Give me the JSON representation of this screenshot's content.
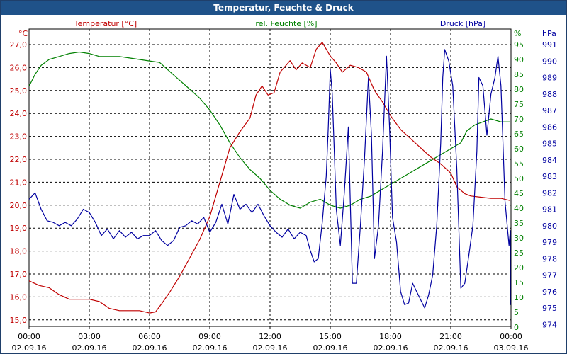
{
  "window": {
    "title": "Temperatur, Feuchte & Druck"
  },
  "chart_data": {
    "type": "line",
    "title": "Temperatur, Feuchte & Druck",
    "x_ticks": [
      {
        "time": "00:00",
        "date": "02.09.16"
      },
      {
        "time": "03:00",
        "date": "02.09.16"
      },
      {
        "time": "06:00",
        "date": "02.09.16"
      },
      {
        "time": "09:00",
        "date": "02.09.16"
      },
      {
        "time": "12:00",
        "date": "02.09.16"
      },
      {
        "time": "15:00",
        "date": "02.09.16"
      },
      {
        "time": "18:00",
        "date": "02.09.16"
      },
      {
        "time": "21:00",
        "date": "02.09.16"
      },
      {
        "time": "00:00",
        "date": "03.09.16"
      }
    ],
    "x_range_hours": [
      0,
      24
    ],
    "grid": true,
    "axes": {
      "temperature": {
        "label": "Temperatur [°C]",
        "unit": "°C",
        "color": "#c00000",
        "ylim": [
          15,
          27.5
        ],
        "ticks": [
          "27,0",
          "26,0",
          "25,0",
          "24,0",
          "23,0",
          "22,0",
          "21,0",
          "20,0",
          "19,0",
          "18,0",
          "17,0",
          "16,0",
          "15,0"
        ]
      },
      "humidity": {
        "label": "rel. Feuchte [%]",
        "unit": "%",
        "color": "#008000",
        "ylim": [
          0,
          100
        ],
        "ticks": [
          "95",
          "90",
          "85",
          "80",
          "75",
          "70",
          "65",
          "60",
          "55",
          "50",
          "45",
          "40",
          "35",
          "30",
          "25",
          "20",
          "15",
          "10",
          "5",
          "0"
        ]
      },
      "pressure": {
        "label": "Druck [hPa]",
        "unit": "hPa",
        "color": "#0000a0",
        "ylim": [
          974,
          991.5
        ],
        "ticks": [
          "991",
          "990",
          "989",
          "988",
          "987",
          "986",
          "985",
          "984",
          "983",
          "982",
          "981",
          "980",
          "979",
          "978",
          "977",
          "976",
          "975",
          "974"
        ]
      }
    },
    "series": [
      {
        "name": "Temperatur [°C]",
        "axis": "temperature",
        "points": [
          [
            0,
            16.7
          ],
          [
            0.5,
            16.5
          ],
          [
            1,
            16.4
          ],
          [
            1.5,
            16.1
          ],
          [
            2,
            15.9
          ],
          [
            2.5,
            15.9
          ],
          [
            3,
            15.9
          ],
          [
            3.5,
            15.8
          ],
          [
            4,
            15.5
          ],
          [
            4.5,
            15.4
          ],
          [
            5,
            15.4
          ],
          [
            5.5,
            15.4
          ],
          [
            6,
            15.3
          ],
          [
            6.3,
            15.35
          ],
          [
            6.6,
            15.7
          ],
          [
            7,
            16.2
          ],
          [
            7.5,
            16.9
          ],
          [
            8,
            17.7
          ],
          [
            8.5,
            18.5
          ],
          [
            9,
            19.5
          ],
          [
            9.5,
            21.0
          ],
          [
            10,
            22.5
          ],
          [
            10.5,
            23.2
          ],
          [
            11,
            23.8
          ],
          [
            11.3,
            24.8
          ],
          [
            11.6,
            25.2
          ],
          [
            11.9,
            24.8
          ],
          [
            12.2,
            24.9
          ],
          [
            12.5,
            25.8
          ],
          [
            13,
            26.3
          ],
          [
            13.3,
            25.9
          ],
          [
            13.6,
            26.2
          ],
          [
            14,
            26.0
          ],
          [
            14.3,
            26.8
          ],
          [
            14.6,
            27.1
          ],
          [
            15,
            26.5
          ],
          [
            15.3,
            26.2
          ],
          [
            15.6,
            25.8
          ],
          [
            16,
            26.1
          ],
          [
            16.4,
            26.0
          ],
          [
            16.8,
            25.8
          ],
          [
            17.2,
            25.0
          ],
          [
            17.6,
            24.5
          ],
          [
            18,
            23.9
          ],
          [
            18.5,
            23.3
          ],
          [
            19,
            22.9
          ],
          [
            19.5,
            22.5
          ],
          [
            20,
            22.1
          ],
          [
            20.5,
            21.8
          ],
          [
            21,
            21.4
          ],
          [
            21.3,
            20.8
          ],
          [
            21.7,
            20.5
          ],
          [
            22,
            20.4
          ],
          [
            22.5,
            20.35
          ],
          [
            23,
            20.3
          ],
          [
            23.5,
            20.3
          ],
          [
            24,
            20.2
          ]
        ]
      },
      {
        "name": "rel. Feuchte [%]",
        "axis": "humidity",
        "points": [
          [
            0,
            81
          ],
          [
            0.3,
            85
          ],
          [
            0.6,
            88
          ],
          [
            1,
            90
          ],
          [
            1.5,
            91
          ],
          [
            2,
            92
          ],
          [
            2.5,
            92.5
          ],
          [
            3,
            92
          ],
          [
            3.5,
            91
          ],
          [
            4,
            91
          ],
          [
            4.5,
            91
          ],
          [
            5,
            90.5
          ],
          [
            5.5,
            90
          ],
          [
            6,
            89.5
          ],
          [
            6.5,
            89
          ],
          [
            7,
            86
          ],
          [
            7.5,
            83
          ],
          [
            8,
            80
          ],
          [
            8.5,
            77
          ],
          [
            9,
            73
          ],
          [
            9.5,
            68
          ],
          [
            10,
            62
          ],
          [
            10.5,
            57
          ],
          [
            11,
            53
          ],
          [
            11.5,
            50
          ],
          [
            12,
            46
          ],
          [
            12.5,
            43
          ],
          [
            13,
            41
          ],
          [
            13.5,
            40
          ],
          [
            14,
            42
          ],
          [
            14.5,
            43
          ],
          [
            15,
            41
          ],
          [
            15.5,
            40
          ],
          [
            16,
            41
          ],
          [
            16.5,
            43
          ],
          [
            17,
            44
          ],
          [
            17.5,
            46
          ],
          [
            18,
            48
          ],
          [
            18.5,
            50
          ],
          [
            19,
            52
          ],
          [
            19.5,
            54
          ],
          [
            20,
            56
          ],
          [
            20.5,
            58
          ],
          [
            21,
            60
          ],
          [
            21.5,
            62
          ],
          [
            21.8,
            66
          ],
          [
            22.2,
            68
          ],
          [
            22.6,
            69
          ],
          [
            23,
            70
          ],
          [
            23.5,
            69
          ],
          [
            24,
            69
          ]
        ]
      },
      {
        "name": "Druck [hPa]",
        "axis": "pressure",
        "points": [
          [
            0,
            981.6
          ],
          [
            0.3,
            982.0
          ],
          [
            0.6,
            981.0
          ],
          [
            0.9,
            980.3
          ],
          [
            1.2,
            980.2
          ],
          [
            1.5,
            980.0
          ],
          [
            1.8,
            980.2
          ],
          [
            2.1,
            980.0
          ],
          [
            2.4,
            980.4
          ],
          [
            2.7,
            981.0
          ],
          [
            3.0,
            980.8
          ],
          [
            3.3,
            980.2
          ],
          [
            3.6,
            979.4
          ],
          [
            3.9,
            979.8
          ],
          [
            4.2,
            979.2
          ],
          [
            4.5,
            979.7
          ],
          [
            4.8,
            979.3
          ],
          [
            5.1,
            979.6
          ],
          [
            5.4,
            979.2
          ],
          [
            5.7,
            979.4
          ],
          [
            6.0,
            979.4
          ],
          [
            6.3,
            979.7
          ],
          [
            6.6,
            979.1
          ],
          [
            6.9,
            978.8
          ],
          [
            7.2,
            979.1
          ],
          [
            7.5,
            979.9
          ],
          [
            7.8,
            980.0
          ],
          [
            8.1,
            980.3
          ],
          [
            8.4,
            980.1
          ],
          [
            8.7,
            980.5
          ],
          [
            9.0,
            979.6
          ],
          [
            9.3,
            980.2
          ],
          [
            9.6,
            981.3
          ],
          [
            9.9,
            980.1
          ],
          [
            10.2,
            981.9
          ],
          [
            10.5,
            981.0
          ],
          [
            10.8,
            981.3
          ],
          [
            11.1,
            980.8
          ],
          [
            11.4,
            981.3
          ],
          [
            11.7,
            980.6
          ],
          [
            12.0,
            980.0
          ],
          [
            12.3,
            979.6
          ],
          [
            12.6,
            979.3
          ],
          [
            12.9,
            979.8
          ],
          [
            13.2,
            979.2
          ],
          [
            13.5,
            979.6
          ],
          [
            13.8,
            979.4
          ],
          [
            14.0,
            978.5
          ],
          [
            14.2,
            977.8
          ],
          [
            14.4,
            978.0
          ],
          [
            14.6,
            980.2
          ],
          [
            14.8,
            983.0
          ],
          [
            14.9,
            986.0
          ],
          [
            15.0,
            989.5
          ],
          [
            15.1,
            988.0
          ],
          [
            15.3,
            981.0
          ],
          [
            15.5,
            978.8
          ],
          [
            15.7,
            982.0
          ],
          [
            15.9,
            986.0
          ],
          [
            16.1,
            976.5
          ],
          [
            16.3,
            976.5
          ],
          [
            16.5,
            980.0
          ],
          [
            16.7,
            984.0
          ],
          [
            16.9,
            989.0
          ],
          [
            17.05,
            985.5
          ],
          [
            17.2,
            978.0
          ],
          [
            17.4,
            980.0
          ],
          [
            17.6,
            984.5
          ],
          [
            17.8,
            990.3
          ],
          [
            17.95,
            986.0
          ],
          [
            18.1,
            980.5
          ],
          [
            18.3,
            979.0
          ],
          [
            18.5,
            976.0
          ],
          [
            18.7,
            975.2
          ],
          [
            18.9,
            975.3
          ],
          [
            19.1,
            976.5
          ],
          [
            19.3,
            976.0
          ],
          [
            19.5,
            975.5
          ],
          [
            19.7,
            975.0
          ],
          [
            19.9,
            975.8
          ],
          [
            20.1,
            977.0
          ],
          [
            20.3,
            980.0
          ],
          [
            20.5,
            985.0
          ],
          [
            20.6,
            989.0
          ],
          [
            20.7,
            990.7
          ],
          [
            20.9,
            990.0
          ],
          [
            21.1,
            988.5
          ],
          [
            21.3,
            983.5
          ],
          [
            21.5,
            976.2
          ],
          [
            21.7,
            976.5
          ],
          [
            21.9,
            978.2
          ],
          [
            22.1,
            980.0
          ],
          [
            22.3,
            984.5
          ],
          [
            22.4,
            989.0
          ],
          [
            22.6,
            988.5
          ],
          [
            22.8,
            985.5
          ],
          [
            23.0,
            988.0
          ],
          [
            23.2,
            989.0
          ],
          [
            23.35,
            990.3
          ],
          [
            23.5,
            988.5
          ],
          [
            23.7,
            981.5
          ],
          [
            23.9,
            978.8
          ],
          [
            24.0,
            979.7
          ],
          [
            24.1,
            978.8
          ],
          [
            24.3,
            976.0
          ],
          [
            24.5,
            975.2
          ],
          [
            24.7,
            976.0
          ]
        ]
      }
    ]
  }
}
